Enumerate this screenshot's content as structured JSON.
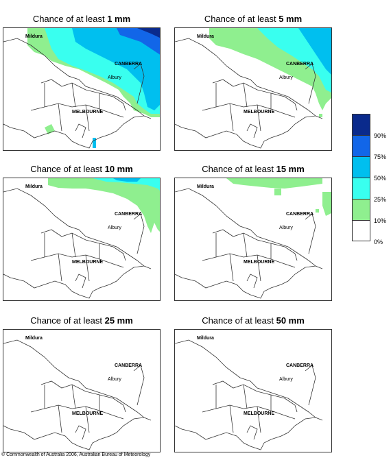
{
  "panels": [
    {
      "title_prefix": "Chance of at least ",
      "amount": "1 mm"
    },
    {
      "title_prefix": "Chance of at least ",
      "amount": "5 mm"
    },
    {
      "title_prefix": "Chance of at least ",
      "amount": "10 mm"
    },
    {
      "title_prefix": "Chance of at least ",
      "amount": "15 mm"
    },
    {
      "title_prefix": "Chance of at least ",
      "amount": "25 mm"
    },
    {
      "title_prefix": "Chance of at least ",
      "amount": "50 mm"
    }
  ],
  "cities": {
    "mildura": "Mildura",
    "canberra": "CANBERRA",
    "albury": "Albury",
    "melbourne": "MELBOURNE"
  },
  "legend": {
    "colors": [
      "#0a2a8c",
      "#1266e8",
      "#00bfef",
      "#39ffef",
      "#8fef8f",
      "#ffffff"
    ],
    "labels": [
      "90%",
      "75%",
      "50%",
      "25%",
      "10%",
      "0%"
    ]
  },
  "copyright": "© Commonwealth of Australia 2006, Australian Bureau of Meteorology"
}
